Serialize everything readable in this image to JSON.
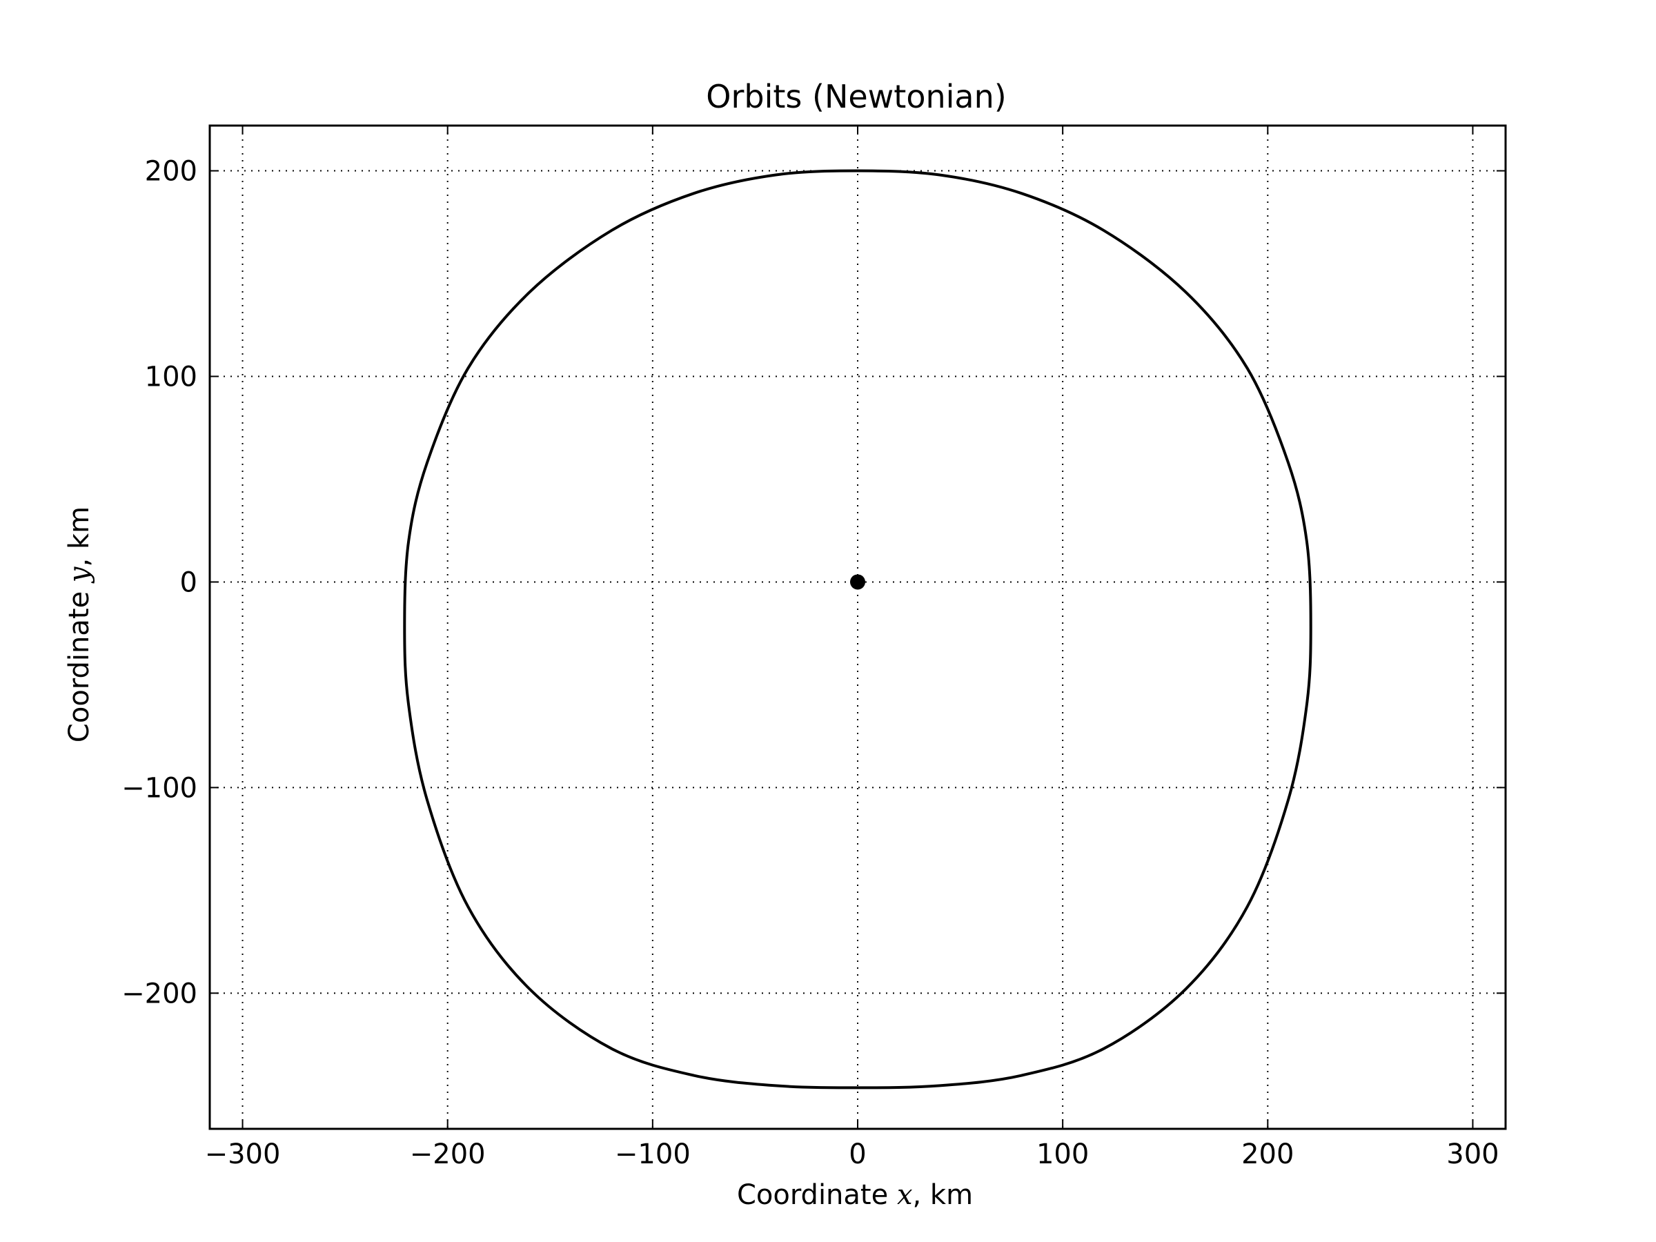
{
  "chart_data": {
    "type": "line",
    "title": "Orbits (Newtonian)",
    "xlabel": {
      "prefix": "Coordinate ",
      "var": "x",
      "suffix": ", km"
    },
    "ylabel": {
      "prefix": "Coordinate ",
      "var": "y",
      "suffix": ", km"
    },
    "xlim": [
      -316,
      316
    ],
    "ylim": [
      -266,
      222
    ],
    "grid": true,
    "x_ticks": [
      -300,
      -200,
      -100,
      0,
      100,
      200,
      300
    ],
    "y_ticks": [
      -200,
      -100,
      0,
      100,
      200
    ],
    "x_tick_labels": [
      "−300",
      "−200",
      "−100",
      "0",
      "100",
      "200",
      "300"
    ],
    "y_tick_labels": [
      "−200",
      "−100",
      "0",
      "100",
      "200"
    ],
    "series": [
      {
        "type": "closed-curve",
        "color": "#000000",
        "points": [
          [
            0,
            200
          ],
          [
            40,
            198
          ],
          [
            80,
            189
          ],
          [
            120,
            171
          ],
          [
            160,
            141
          ],
          [
            190,
            104
          ],
          [
            210,
            58
          ],
          [
            219,
            20
          ],
          [
            221,
            -22
          ],
          [
            219,
            -60
          ],
          [
            210,
            -106
          ],
          [
            190,
            -158
          ],
          [
            160,
            -198
          ],
          [
            120,
            -227
          ],
          [
            80,
            -240
          ],
          [
            40,
            -245
          ],
          [
            0,
            -246
          ],
          [
            -40,
            -245
          ],
          [
            -80,
            -240
          ],
          [
            -120,
            -227
          ],
          [
            -160,
            -198
          ],
          [
            -190,
            -158
          ],
          [
            -210,
            -106
          ],
          [
            -219,
            -60
          ],
          [
            -221,
            -22
          ],
          [
            -219,
            20
          ],
          [
            -210,
            58
          ],
          [
            -190,
            104
          ],
          [
            -160,
            141
          ],
          [
            -120,
            171
          ],
          [
            -80,
            189
          ],
          [
            -40,
            198
          ]
        ]
      }
    ],
    "central_body": {
      "x": 0,
      "y": 0,
      "color": "#000000"
    }
  }
}
